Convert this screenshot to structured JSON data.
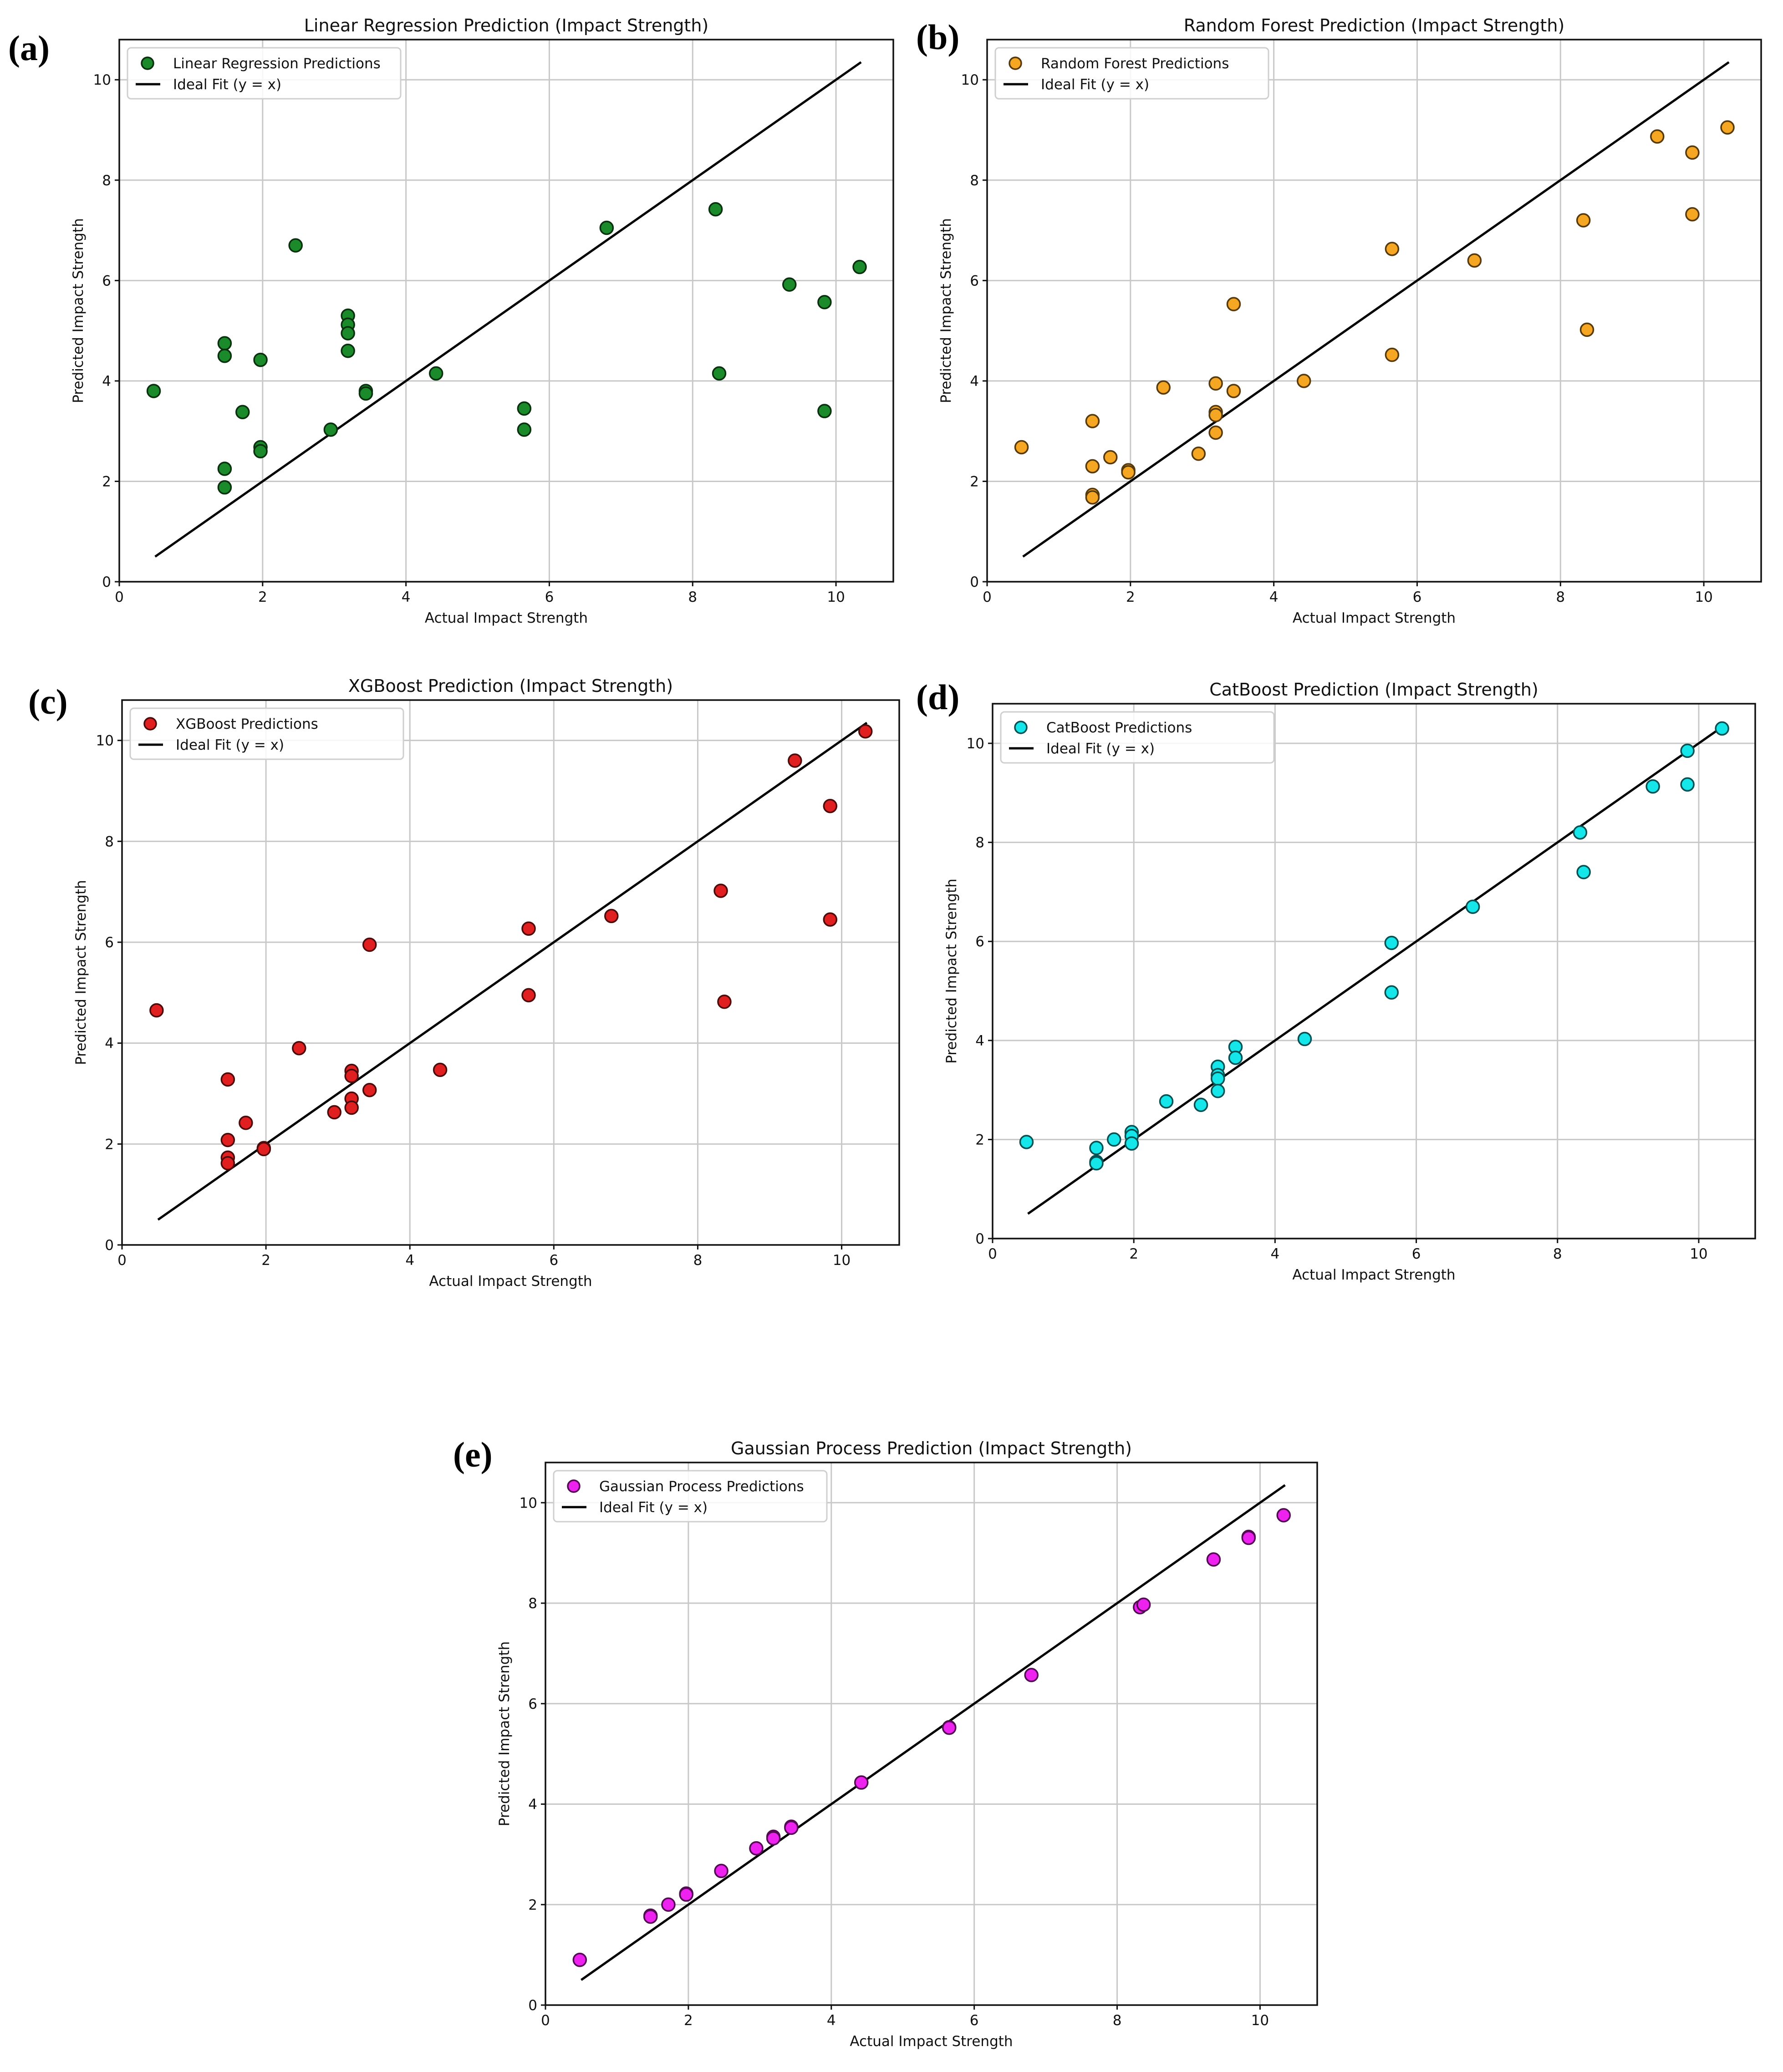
{
  "figure": {
    "panels_description": "Five scatter plots of predicted vs actual impact strength",
    "chart_data": [
      {
        "id": "a",
        "panel_label": "(a)",
        "type": "scatter",
        "title": "Linear Regression Prediction (Impact Strength)",
        "xlabel": "Actual Impact Strength",
        "ylabel": "Predicted Impact Strength",
        "xlim": [
          0,
          10.8
        ],
        "ylim": [
          0,
          10.8
        ],
        "xticks": [
          "0",
          "2",
          "4",
          "6",
          "8",
          "10"
        ],
        "yticks": [
          "0",
          "2",
          "4",
          "6",
          "8",
          "10"
        ],
        "grid": true,
        "legend_position": "top-left",
        "series_name": "Linear Regression Predictions",
        "ideal_label": "Ideal Fit (y = x)",
        "ideal_range": [
          0.5,
          10.35
        ],
        "color": "#1a8a2a",
        "points": [
          [
            0.48,
            3.8
          ],
          [
            1.47,
            4.75
          ],
          [
            1.47,
            4.5
          ],
          [
            1.47,
            2.25
          ],
          [
            1.47,
            1.88
          ],
          [
            1.72,
            3.38
          ],
          [
            1.97,
            4.42
          ],
          [
            1.97,
            2.68
          ],
          [
            1.97,
            2.6
          ],
          [
            2.46,
            6.7
          ],
          [
            2.95,
            3.03
          ],
          [
            3.19,
            5.3
          ],
          [
            3.19,
            5.12
          ],
          [
            3.19,
            4.95
          ],
          [
            3.19,
            4.6
          ],
          [
            3.44,
            3.8
          ],
          [
            3.44,
            3.75
          ],
          [
            4.42,
            4.15
          ],
          [
            5.65,
            3.45
          ],
          [
            5.65,
            3.03
          ],
          [
            6.8,
            7.05
          ],
          [
            8.32,
            7.42
          ],
          [
            8.37,
            4.15
          ],
          [
            9.35,
            5.92
          ],
          [
            9.84,
            5.57
          ],
          [
            9.84,
            3.4
          ],
          [
            10.33,
            6.27
          ]
        ]
      },
      {
        "id": "b",
        "panel_label": "(b)",
        "type": "scatter",
        "title": "Random Forest Prediction (Impact Strength)",
        "xlabel": "Actual Impact Strength",
        "ylabel": "Predicted Impact Strength",
        "xlim": [
          0,
          10.8
        ],
        "ylim": [
          0,
          10.8
        ],
        "xticks": [
          "0",
          "2",
          "4",
          "6",
          "8",
          "10"
        ],
        "yticks": [
          "0",
          "2",
          "4",
          "6",
          "8",
          "10"
        ],
        "grid": true,
        "legend_position": "top-left",
        "series_name": "Random Forest Predictions",
        "ideal_label": "Ideal Fit (y = x)",
        "ideal_range": [
          0.5,
          10.35
        ],
        "color": "#f5a623",
        "points": [
          [
            0.48,
            2.68
          ],
          [
            1.47,
            3.2
          ],
          [
            1.47,
            2.3
          ],
          [
            1.47,
            1.73
          ],
          [
            1.47,
            1.68
          ],
          [
            1.72,
            2.48
          ],
          [
            1.97,
            2.22
          ],
          [
            1.97,
            2.18
          ],
          [
            2.46,
            3.87
          ],
          [
            2.95,
            2.55
          ],
          [
            3.19,
            3.95
          ],
          [
            3.19,
            3.38
          ],
          [
            3.19,
            3.32
          ],
          [
            3.19,
            2.97
          ],
          [
            3.44,
            5.53
          ],
          [
            3.44,
            3.8
          ],
          [
            4.42,
            4.0
          ],
          [
            5.65,
            6.63
          ],
          [
            5.65,
            4.52
          ],
          [
            6.8,
            6.4
          ],
          [
            8.32,
            7.2
          ],
          [
            8.37,
            5.02
          ],
          [
            9.35,
            8.87
          ],
          [
            9.84,
            8.55
          ],
          [
            9.84,
            7.32
          ],
          [
            10.33,
            9.05
          ]
        ]
      },
      {
        "id": "c",
        "panel_label": "(c)",
        "type": "scatter",
        "title": "XGBoost Prediction (Impact Strength)",
        "xlabel": "Actual Impact Strength",
        "ylabel": "Predicted Impact Strength",
        "xlim": [
          0,
          10.8
        ],
        "ylim": [
          0,
          10.8
        ],
        "xticks": [
          "0",
          "2",
          "4",
          "6",
          "8",
          "10"
        ],
        "yticks": [
          "0",
          "2",
          "4",
          "6",
          "8",
          "10"
        ],
        "grid": true,
        "legend_position": "top-left",
        "series_name": "XGBoost Predictions",
        "ideal_label": "Ideal Fit (y = x)",
        "ideal_range": [
          0.5,
          10.35
        ],
        "color": "#e02020",
        "points": [
          [
            0.48,
            4.65
          ],
          [
            1.47,
            3.28
          ],
          [
            1.47,
            2.08
          ],
          [
            1.47,
            1.73
          ],
          [
            1.47,
            1.62
          ],
          [
            1.72,
            2.42
          ],
          [
            1.97,
            1.92
          ],
          [
            1.97,
            1.9
          ],
          [
            2.46,
            3.9
          ],
          [
            2.95,
            2.63
          ],
          [
            3.19,
            3.45
          ],
          [
            3.19,
            3.35
          ],
          [
            3.19,
            2.9
          ],
          [
            3.19,
            2.72
          ],
          [
            3.44,
            5.95
          ],
          [
            3.44,
            3.07
          ],
          [
            4.42,
            3.47
          ],
          [
            5.65,
            6.27
          ],
          [
            5.65,
            4.95
          ],
          [
            6.8,
            6.52
          ],
          [
            8.32,
            7.02
          ],
          [
            8.37,
            4.82
          ],
          [
            9.35,
            9.6
          ],
          [
            9.84,
            8.7
          ],
          [
            9.84,
            6.45
          ],
          [
            10.33,
            10.18
          ]
        ]
      },
      {
        "id": "d",
        "panel_label": "(d)",
        "type": "scatter",
        "title": "CatBoost Prediction (Impact Strength)",
        "xlabel": "Actual Impact Strength",
        "ylabel": "Predicted Impact Strength",
        "xlim": [
          0,
          10.8
        ],
        "ylim": [
          0,
          10.8
        ],
        "xticks": [
          "0",
          "2",
          "4",
          "6",
          "8",
          "10"
        ],
        "yticks": [
          "0",
          "2",
          "4",
          "6",
          "8",
          "10"
        ],
        "grid": true,
        "legend_position": "top-left",
        "series_name": "CatBoost Predictions",
        "ideal_label": "Ideal Fit (y = x)",
        "ideal_range": [
          0.5,
          10.3
        ],
        "color": "#14e6ea",
        "points": [
          [
            0.48,
            1.95
          ],
          [
            1.47,
            1.83
          ],
          [
            1.47,
            1.55
          ],
          [
            1.47,
            1.52
          ],
          [
            1.72,
            2.0
          ],
          [
            1.97,
            2.15
          ],
          [
            1.97,
            2.07
          ],
          [
            1.97,
            1.92
          ],
          [
            2.46,
            2.77
          ],
          [
            2.95,
            2.7
          ],
          [
            3.19,
            3.47
          ],
          [
            3.19,
            3.3
          ],
          [
            3.19,
            3.23
          ],
          [
            3.19,
            2.98
          ],
          [
            3.44,
            3.87
          ],
          [
            3.44,
            3.65
          ],
          [
            4.42,
            4.03
          ],
          [
            5.65,
            5.97
          ],
          [
            5.65,
            4.97
          ],
          [
            6.8,
            6.7
          ],
          [
            8.32,
            8.2
          ],
          [
            8.37,
            7.4
          ],
          [
            9.35,
            9.13
          ],
          [
            9.84,
            9.85
          ],
          [
            9.84,
            9.17
          ],
          [
            10.33,
            10.3
          ]
        ]
      },
      {
        "id": "e",
        "panel_label": "(e)",
        "type": "scatter",
        "title": "Gaussian Process Prediction (Impact Strength)",
        "xlabel": "Actual Impact Strength",
        "ylabel": "Predicted Impact Strength",
        "xlim": [
          0,
          10.8
        ],
        "ylim": [
          0,
          10.8
        ],
        "xticks": [
          "0",
          "2",
          "4",
          "6",
          "8",
          "10"
        ],
        "yticks": [
          "0",
          "2",
          "4",
          "6",
          "8",
          "10"
        ],
        "grid": true,
        "legend_position": "top-left",
        "series_name": "Gaussian Process Predictions",
        "ideal_label": "Ideal Fit (y = x)",
        "ideal_range": [
          0.5,
          10.35
        ],
        "color": "#ee22ee",
        "points": [
          [
            0.48,
            0.9
          ],
          [
            1.47,
            1.78
          ],
          [
            1.47,
            1.76
          ],
          [
            1.72,
            2.0
          ],
          [
            1.97,
            2.22
          ],
          [
            1.97,
            2.2
          ],
          [
            2.46,
            2.67
          ],
          [
            2.95,
            3.12
          ],
          [
            3.19,
            3.35
          ],
          [
            3.19,
            3.32
          ],
          [
            3.44,
            3.55
          ],
          [
            3.44,
            3.53
          ],
          [
            4.42,
            4.43
          ],
          [
            5.65,
            5.53
          ],
          [
            5.65,
            5.52
          ],
          [
            6.8,
            6.57
          ],
          [
            8.32,
            7.92
          ],
          [
            8.37,
            7.97
          ],
          [
            9.35,
            8.87
          ],
          [
            9.84,
            9.32
          ],
          [
            9.84,
            9.3
          ],
          [
            10.33,
            9.75
          ]
        ]
      }
    ]
  }
}
